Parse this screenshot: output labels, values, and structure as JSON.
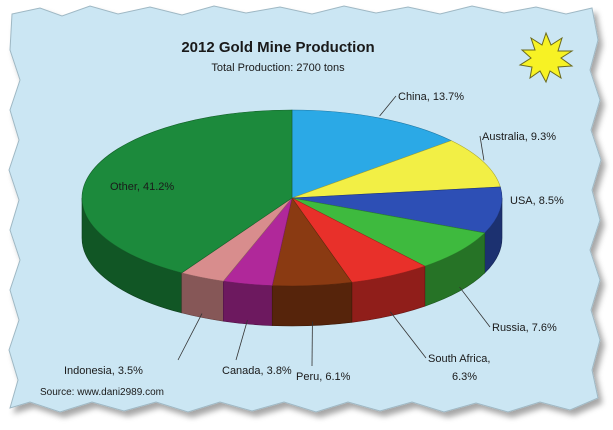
{
  "chart_data": {
    "type": "pie",
    "title": "2012 Gold Mine Production",
    "subtitle": "Total Production: 2700 tons",
    "source": "Source: www.dani2989.com",
    "slices": [
      {
        "label": "China, 13.7%",
        "value": 13.7,
        "color": "#2ba9e6"
      },
      {
        "label": "Australia, 9.3%",
        "value": 9.3,
        "color": "#f2ef45"
      },
      {
        "label": "USA, 8.5%",
        "value": 8.5,
        "color": "#2d4fb5"
      },
      {
        "label": "Russia, 7.6%",
        "value": 7.6,
        "color": "#3eba3e"
      },
      {
        "label": "South Africa,",
        "label2": "6.3%",
        "value": 6.3,
        "color": "#e8302a"
      },
      {
        "label": "Peru, 6.1%",
        "value": 6.1,
        "color": "#8a3a12"
      },
      {
        "label": "Canada, 3.8%",
        "value": 3.8,
        "color": "#b0289a"
      },
      {
        "label": "Indonesia, 3.5%",
        "value": 3.5,
        "color": "#d88d8d"
      },
      {
        "label": "Other, 41.2%",
        "value": 41.2,
        "color": "#1c8a3c"
      }
    ],
    "background_color": "#cbe6f3",
    "starburst_color": "#f7f224"
  }
}
